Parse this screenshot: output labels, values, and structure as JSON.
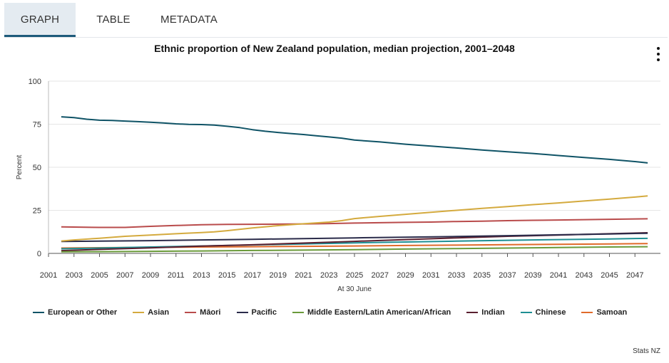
{
  "tabs": [
    {
      "label": "GRAPH",
      "active": true
    },
    {
      "label": "TABLE",
      "active": false
    },
    {
      "label": "METADATA",
      "active": false
    }
  ],
  "source": "Stats NZ",
  "chart_data": {
    "type": "line",
    "title": "Ethnic proportion of New Zealand population, median projection, 2001–2048",
    "xlabel": "At 30 June",
    "ylabel": "Percent",
    "ylim": [
      0,
      100
    ],
    "xlim": [
      2001,
      2049
    ],
    "yticks": [
      0,
      25,
      50,
      75,
      100
    ],
    "xticks": [
      2001,
      2003,
      2005,
      2007,
      2009,
      2011,
      2013,
      2015,
      2017,
      2019,
      2021,
      2023,
      2025,
      2027,
      2029,
      2031,
      2033,
      2035,
      2037,
      2039,
      2041,
      2043,
      2045,
      2047
    ],
    "grid": "horizontal",
    "legend_position": "bottom",
    "series": [
      {
        "name": "European or Other",
        "color": "#0f5366",
        "x": [
          2002,
          2003,
          2004,
          2005,
          2006,
          2007,
          2008,
          2009,
          2010,
          2011,
          2012,
          2013,
          2014,
          2015,
          2016,
          2017,
          2018,
          2019,
          2020,
          2021,
          2022,
          2023,
          2024,
          2025,
          2027,
          2029,
          2031,
          2033,
          2035,
          2037,
          2039,
          2041,
          2043,
          2045,
          2047,
          2048
        ],
        "y": [
          79.3,
          78.8,
          77.9,
          77.3,
          77.2,
          76.8,
          76.5,
          76.1,
          75.7,
          75.2,
          74.9,
          74.8,
          74.5,
          73.8,
          73.0,
          71.8,
          70.9,
          70.2,
          69.6,
          69.0,
          68.3,
          67.6,
          66.9,
          65.8,
          64.7,
          63.4,
          62.3,
          61.2,
          60.0,
          59.0,
          58.0,
          56.8,
          55.7,
          54.6,
          53.3,
          52.5
        ]
      },
      {
        "name": "Asian",
        "color": "#d4aa3e",
        "x": [
          2002,
          2003,
          2005,
          2007,
          2009,
          2011,
          2013,
          2014,
          2015,
          2017,
          2019,
          2021,
          2023,
          2024,
          2025,
          2027,
          2029,
          2031,
          2033,
          2035,
          2037,
          2039,
          2041,
          2043,
          2045,
          2047,
          2048
        ],
        "y": [
          7.2,
          7.8,
          8.8,
          9.9,
          10.6,
          11.4,
          12.1,
          12.5,
          13.2,
          14.8,
          16.1,
          17.2,
          18.2,
          19.0,
          20.2,
          21.5,
          22.7,
          23.9,
          25.0,
          26.1,
          27.2,
          28.3,
          29.3,
          30.4,
          31.5,
          32.7,
          33.4
        ]
      },
      {
        "name": "Māori",
        "color": "#b94b4b",
        "x": [
          2002,
          2005,
          2007,
          2009,
          2011,
          2013,
          2015,
          2017,
          2019,
          2021,
          2023,
          2025,
          2027,
          2029,
          2031,
          2033,
          2035,
          2037,
          2039,
          2041,
          2043,
          2045,
          2047,
          2048
        ],
        "y": [
          15.4,
          15.1,
          15.1,
          15.7,
          16.2,
          16.6,
          16.8,
          16.9,
          17.0,
          17.1,
          17.3,
          17.6,
          17.8,
          18.0,
          18.2,
          18.5,
          18.7,
          19.0,
          19.2,
          19.4,
          19.6,
          19.8,
          20.0,
          20.1
        ]
      },
      {
        "name": "Pacific",
        "color": "#2a2b4a",
        "x": [
          2002,
          2005,
          2009,
          2013,
          2017,
          2021,
          2025,
          2029,
          2033,
          2037,
          2041,
          2045,
          2048
        ],
        "y": [
          6.9,
          7.1,
          7.4,
          7.8,
          8.2,
          8.6,
          9.0,
          9.4,
          9.8,
          10.3,
          10.8,
          11.3,
          11.7
        ]
      },
      {
        "name": "Middle Eastern/Latin American/African",
        "color": "#6a9a3a",
        "x": [
          2002,
          2005,
          2009,
          2013,
          2017,
          2021,
          2025,
          2029,
          2033,
          2037,
          2041,
          2045,
          2048
        ],
        "y": [
          0.9,
          1.0,
          1.2,
          1.4,
          1.7,
          1.9,
          2.2,
          2.5,
          2.8,
          3.1,
          3.4,
          3.7,
          3.9
        ]
      },
      {
        "name": "Indian",
        "color": "#5a1f2f",
        "x": [
          2002,
          2005,
          2009,
          2013,
          2017,
          2021,
          2025,
          2029,
          2033,
          2037,
          2041,
          2045,
          2048
        ],
        "y": [
          1.6,
          2.3,
          3.2,
          4.2,
          5.0,
          6.0,
          7.0,
          8.0,
          9.0,
          9.9,
          10.6,
          11.4,
          12.0
        ]
      },
      {
        "name": "Chinese",
        "color": "#1e8f93",
        "x": [
          2002,
          2005,
          2009,
          2013,
          2017,
          2021,
          2025,
          2029,
          2033,
          2037,
          2041,
          2045,
          2048
        ],
        "y": [
          2.7,
          3.1,
          3.7,
          4.3,
          4.9,
          5.5,
          6.1,
          6.6,
          7.1,
          7.6,
          8.0,
          8.4,
          8.7
        ]
      },
      {
        "name": "Samoan",
        "color": "#e06a2a",
        "x": [
          2002,
          2005,
          2009,
          2013,
          2017,
          2021,
          2025,
          2029,
          2033,
          2037,
          2041,
          2045,
          2048
        ],
        "y": [
          3.1,
          3.3,
          3.5,
          3.7,
          3.9,
          4.1,
          4.3,
          4.6,
          4.8,
          5.1,
          5.3,
          5.5,
          5.7
        ]
      }
    ]
  }
}
